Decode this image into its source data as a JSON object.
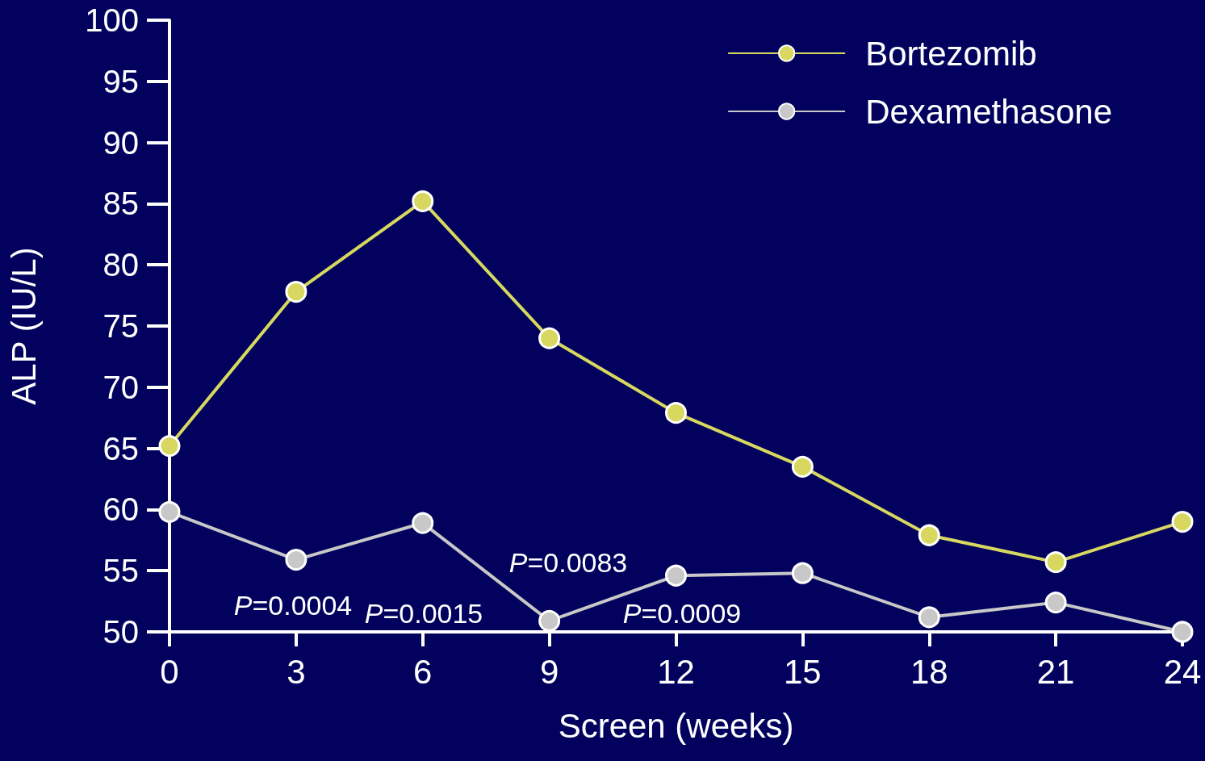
{
  "chart_data": {
    "type": "line",
    "xlabel": "Screen (weeks)",
    "ylabel": "ALP (IU/L)",
    "x": [
      0,
      3,
      6,
      9,
      12,
      15,
      18,
      21,
      24
    ],
    "series": [
      {
        "name": "Bortezomib",
        "color": "#d8d860",
        "values": [
          65.2,
          77.8,
          85.2,
          74.0,
          67.9,
          63.5,
          57.9,
          55.7,
          59.0
        ]
      },
      {
        "name": "Dexamethasone",
        "color": "#c8c8c8",
        "values": [
          59.8,
          55.9,
          58.9,
          50.9,
          54.6,
          54.8,
          51.2,
          52.4,
          50.0
        ]
      }
    ],
    "xlim": [
      0,
      24
    ],
    "xticks": [
      0,
      3,
      6,
      9,
      12,
      15,
      18,
      21,
      24
    ],
    "ylim": [
      50,
      100
    ],
    "yticks": [
      50,
      55,
      60,
      65,
      70,
      75,
      80,
      85,
      90,
      95,
      100
    ],
    "annotations": [
      "P=0.0004",
      "P=0.0015",
      "P=0.0083",
      "P=0.0009"
    ],
    "grid": false,
    "legend": "top right",
    "marker": "circle",
    "line_style": "solid"
  }
}
